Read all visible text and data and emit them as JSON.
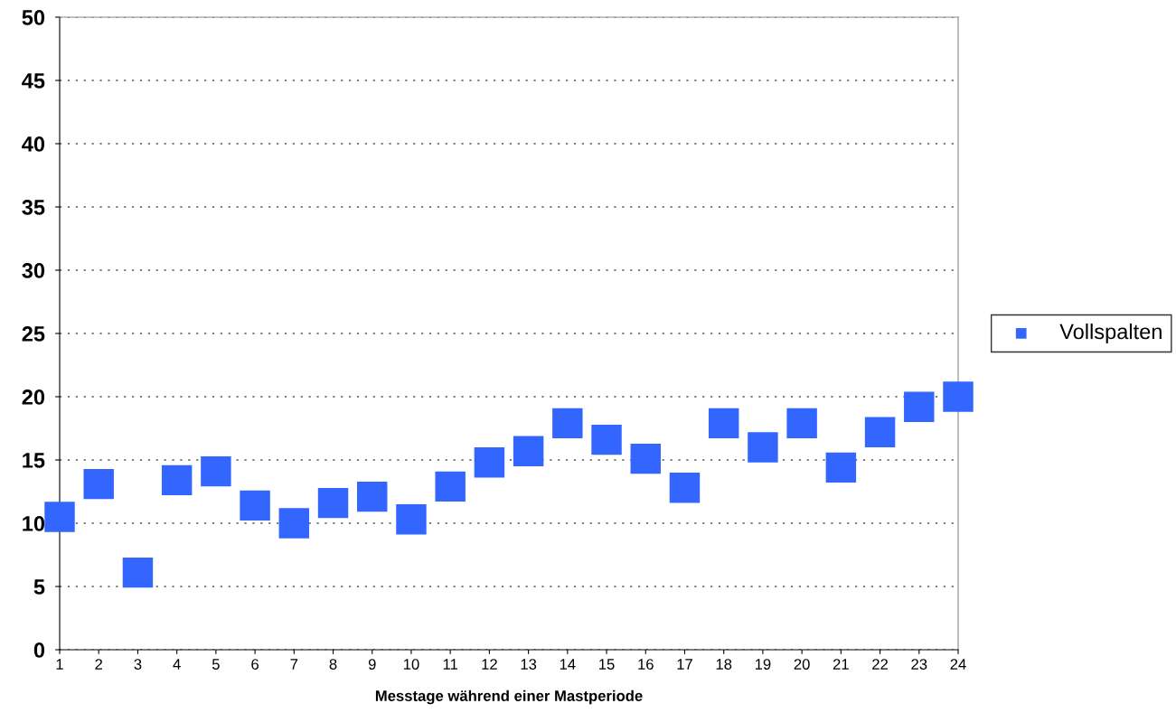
{
  "chart_data": {
    "type": "scatter",
    "xlabel": "Messtage während einer Mastperiode",
    "categories": [
      "1",
      "2",
      "3",
      "4",
      "5",
      "6",
      "7",
      "8",
      "9",
      "10",
      "11",
      "12",
      "13",
      "14",
      "15",
      "16",
      "17",
      "18",
      "19",
      "20",
      "21",
      "22",
      "23",
      "24"
    ],
    "series": [
      {
        "name": "Vollspalten",
        "color": "#3366ff",
        "values": [
          10.5,
          13.1,
          6.1,
          13.4,
          14.1,
          11.4,
          10.0,
          11.6,
          12.1,
          10.3,
          12.9,
          14.8,
          15.7,
          17.9,
          16.6,
          15.1,
          12.8,
          17.9,
          16.0,
          17.9,
          14.4,
          17.2,
          19.2,
          20.0
        ]
      }
    ],
    "ylim": [
      0,
      50
    ],
    "yticks": [
      0,
      5,
      10,
      15,
      20,
      25,
      30,
      35,
      40,
      45,
      50
    ],
    "grid": "y",
    "legend": "right",
    "marker": "square"
  }
}
